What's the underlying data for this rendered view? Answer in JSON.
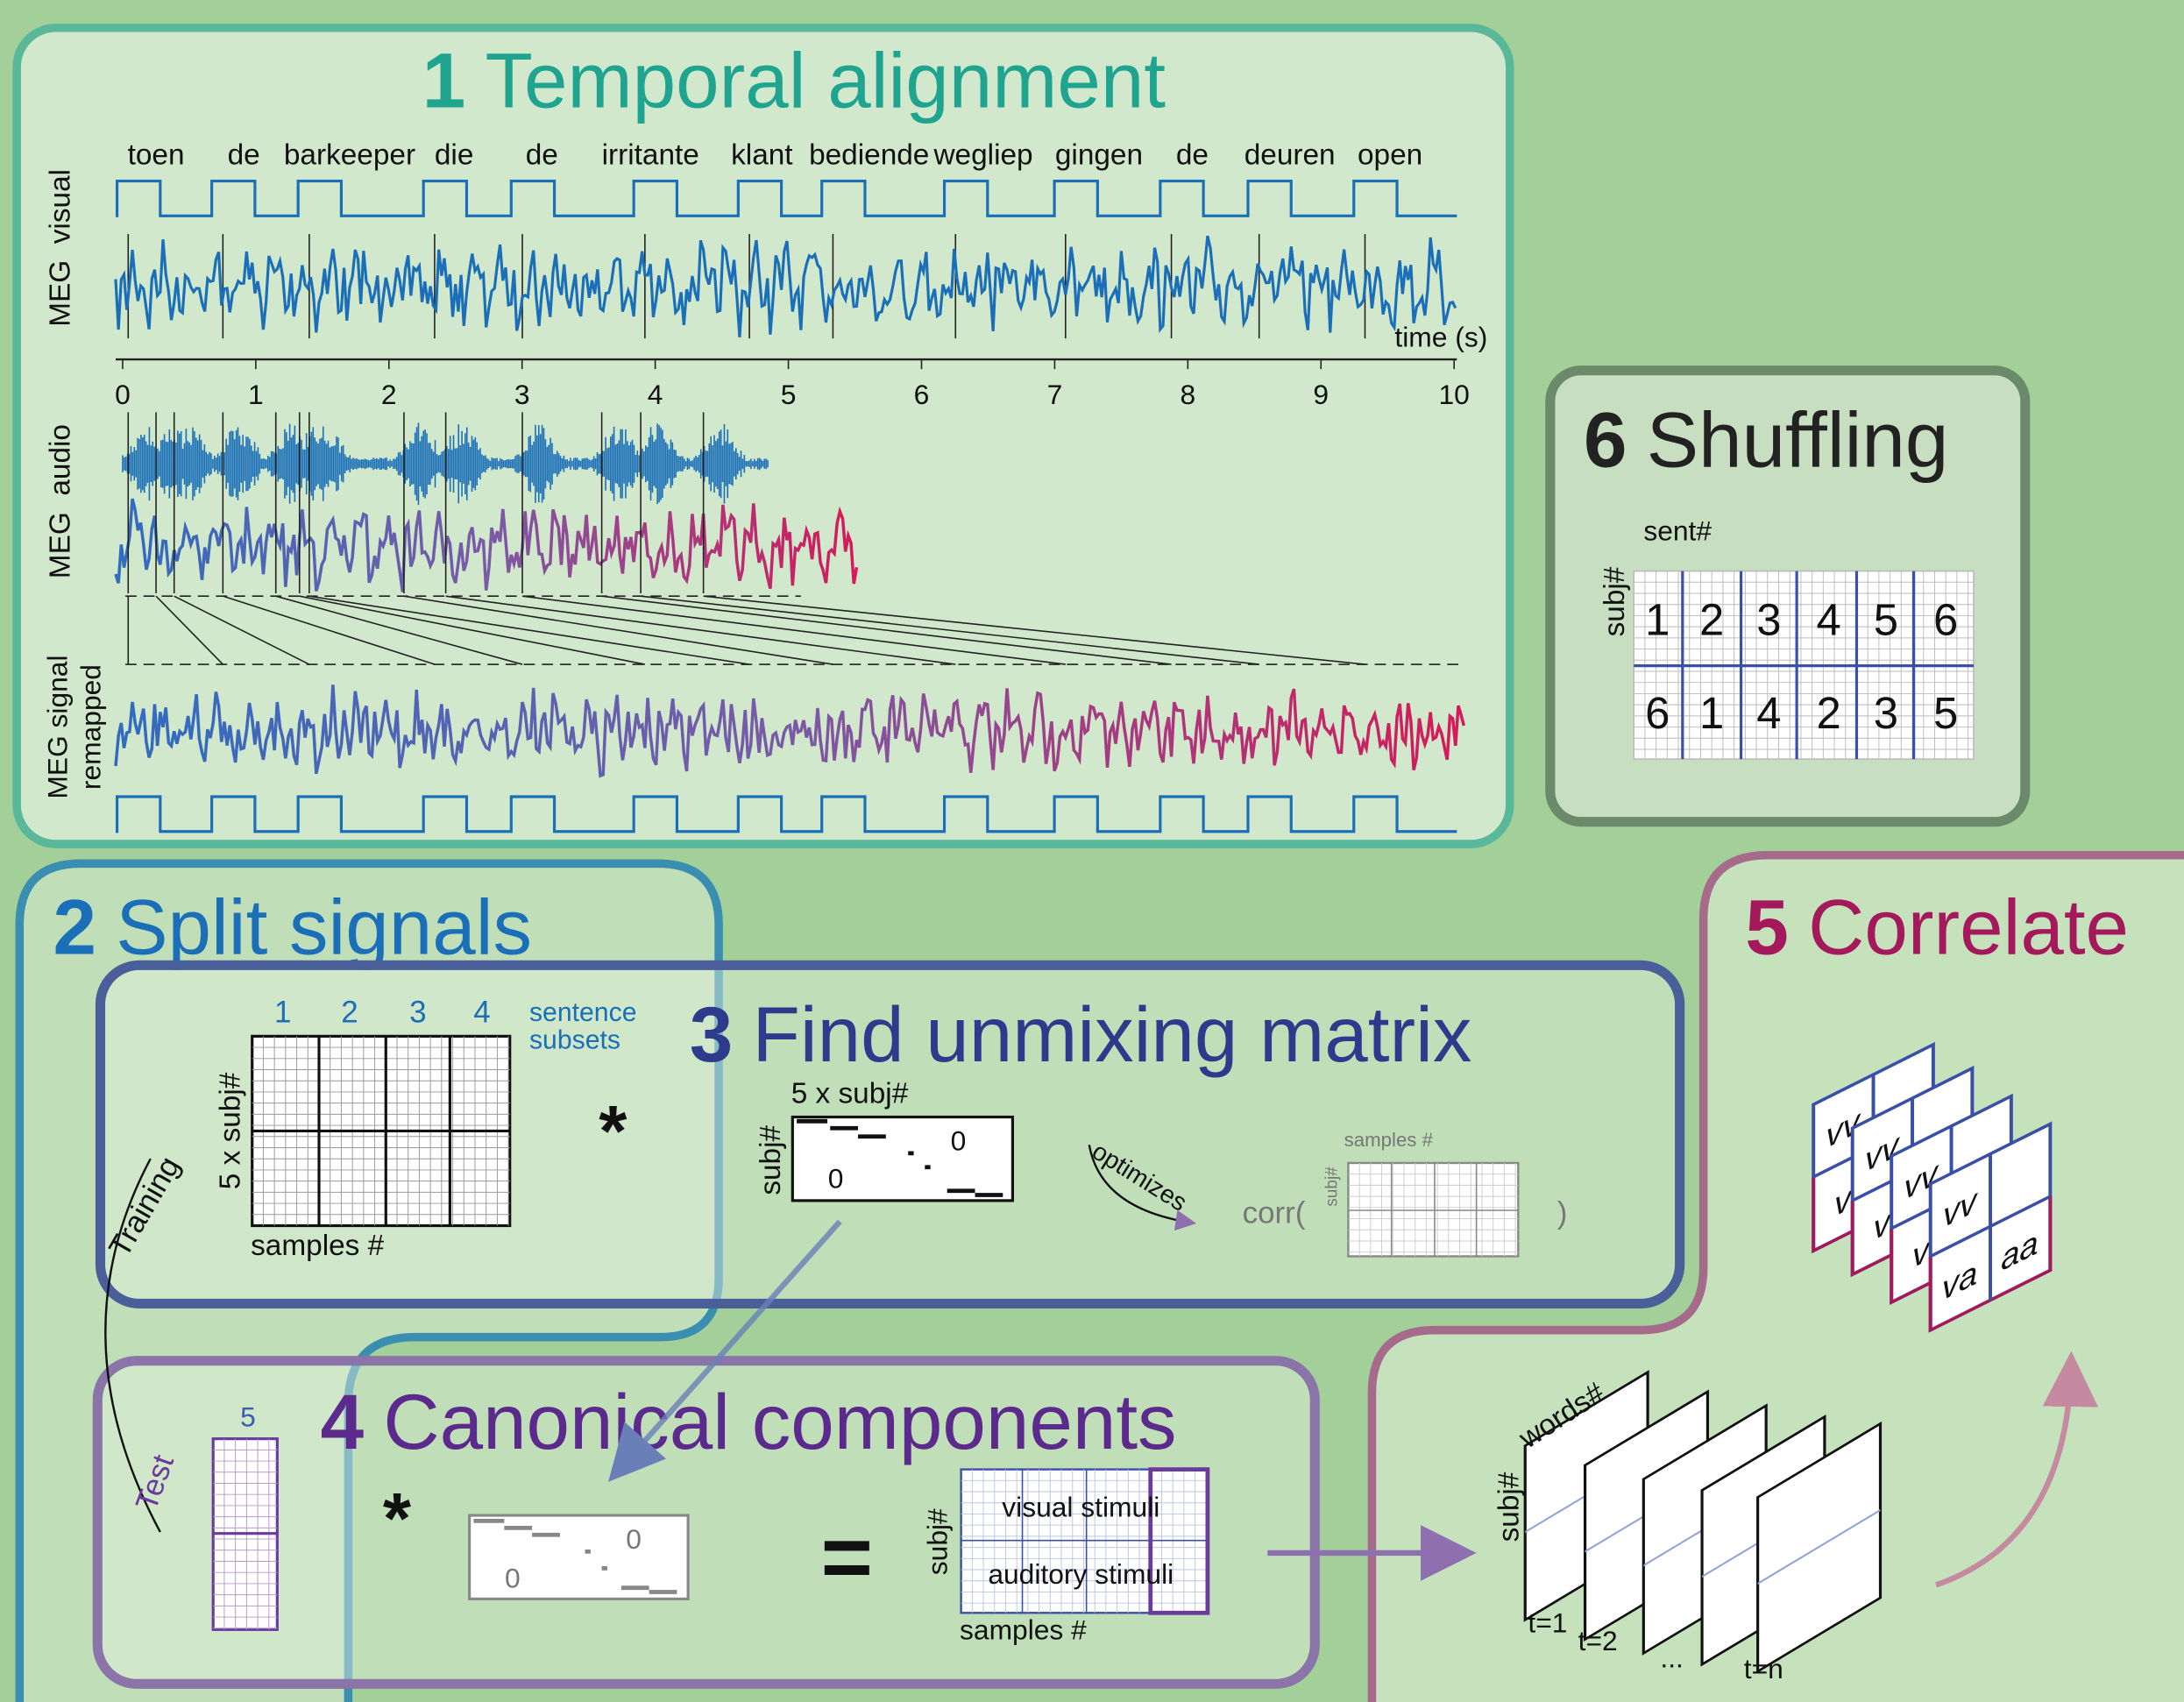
{
  "temporal_alignment": {
    "number": "1",
    "title": "Temporal alignment",
    "words": [
      "toen",
      "de",
      "barkeeper",
      "die",
      "de",
      "irritante",
      "klant",
      "bediende",
      "wegliep",
      "gingen",
      "de",
      "deuren",
      "open"
    ],
    "visual_label": "MEG  visual",
    "audio_label": "MEG  audio",
    "remapped_label": [
      "MEG signal",
      "remapped"
    ],
    "time_label": "time (s)",
    "time_ticks": [
      0,
      1,
      2,
      3,
      4,
      5,
      6,
      7,
      8,
      9,
      10
    ]
  },
  "shuffling": {
    "number": "6",
    "title": "Shuffling",
    "column_label": "sent#",
    "row_label": "subj#",
    "rows": [
      [
        1,
        2,
        3,
        4,
        5,
        6
      ],
      [
        6,
        1,
        4,
        2,
        3,
        5
      ]
    ]
  },
  "split_signals": {
    "number": "2",
    "title": "Split signals",
    "subset_numbers": [
      1,
      2,
      3,
      4
    ],
    "subset_label": [
      "sentence",
      "subsets"
    ],
    "row_label": "5 x subj#",
    "column_label": "samples #",
    "operator": "*",
    "training_label": "Training",
    "test_label": "Test",
    "test_width": 5
  },
  "unmixing": {
    "number": "3",
    "title": "Find unmixing matrix",
    "matrix_col_label": "5 x subj#",
    "matrix_row_label": "subj#",
    "zeros": [
      0,
      0
    ],
    "optimizes_label": "optimizes",
    "corr_open": "corr(",
    "corr_close": ")",
    "corr_col_label": "samples #",
    "corr_row_label": "subj#"
  },
  "canonical": {
    "number": "4",
    "title": "Canonical components",
    "operator": "*",
    "zeros": [
      0,
      0
    ],
    "equals": "=",
    "row_label": "subj#",
    "rows": [
      "visual stimuli",
      "auditory stimuli"
    ],
    "column_label": "samples #"
  },
  "correlate": {
    "number": "5",
    "title": "Correlate",
    "back_labels": [
      "vv",
      "v"
    ],
    "front_labels": [
      "vv",
      "va",
      "aa"
    ],
    "frame_row_label": "subj#",
    "frame_col_label": "words#",
    "frame_labels": [
      "t=1",
      "t=2",
      "...",
      "t=n"
    ]
  }
}
